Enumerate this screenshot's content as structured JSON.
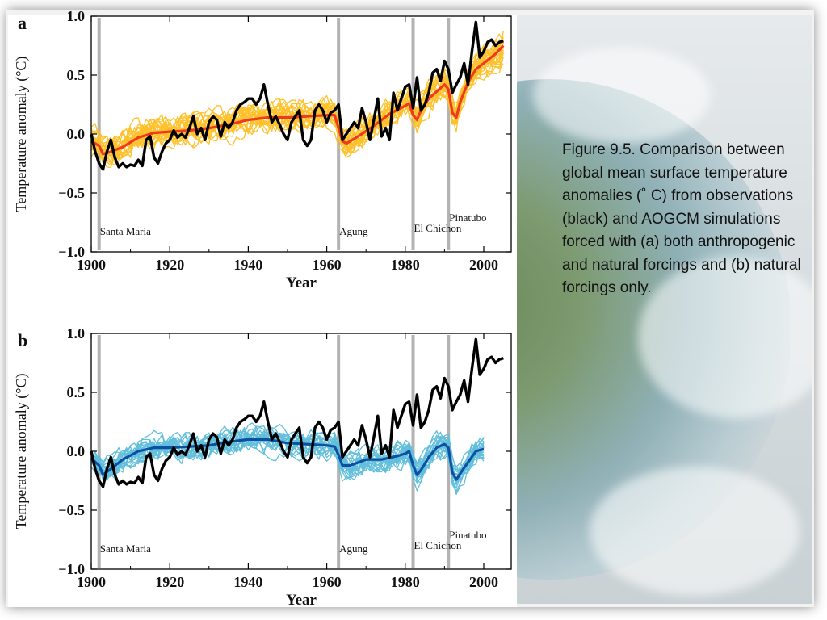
{
  "caption": "Figure 9.5. Comparison between global mean surface temperature anomalies (˚ C) from observations (black) and AOGCM simulations forced with (a) both anthropogenic and natural forcings and (b) natural forcings only.",
  "colors": {
    "observations": "#000000",
    "panel_a_ensemble": "#ffc12b",
    "panel_a_mean": "#ee3a1f",
    "panel_b_ensemble": "#62bfdb",
    "panel_b_mean": "#0d4fa3",
    "eruption_bar": "#b3b3b3"
  },
  "chart_data": [
    {
      "type": "line",
      "panel_label": "a",
      "ylabel": "Temperature anomaly (°C)",
      "xlabel": "Year",
      "xlim": [
        1900,
        2007
      ],
      "ylim": [
        -1.0,
        1.0
      ],
      "xticks": [
        1900,
        1920,
        1940,
        1960,
        1980,
        2000
      ],
      "ytick_labels": [
        "1.0",
        "0.5",
        "0.0",
        "−0.5",
        "−1.0"
      ],
      "ytick_values": [
        1.0,
        0.5,
        0.0,
        -0.5,
        -1.0
      ],
      "eruptions": [
        {
          "name": "Santa Maria",
          "year": 1902
        },
        {
          "name": "Agung",
          "year": 1963
        },
        {
          "name": "El Chichon",
          "year": 1982
        },
        {
          "name": "Pinatubo",
          "year": 1991
        }
      ],
      "series": [
        {
          "role": "ensemble_mean",
          "x": [
            1900,
            1902,
            1903,
            1905,
            1908,
            1912,
            1916,
            1920,
            1925,
            1930,
            1935,
            1940,
            1945,
            1950,
            1955,
            1960,
            1962,
            1963,
            1964,
            1965,
            1968,
            1972,
            1976,
            1980,
            1981,
            1982,
            1983,
            1984,
            1986,
            1988,
            1990,
            1991,
            1992,
            1993,
            1994,
            1996,
            1998,
            2000,
            2003,
            2005
          ],
          "y": [
            -0.06,
            -0.1,
            -0.17,
            -0.15,
            -0.11,
            -0.03,
            0.01,
            0.02,
            0.03,
            0.05,
            0.08,
            0.12,
            0.14,
            0.14,
            0.15,
            0.16,
            0.16,
            0.05,
            -0.06,
            -0.08,
            -0.02,
            0.07,
            0.17,
            0.24,
            0.26,
            0.16,
            0.12,
            0.2,
            0.3,
            0.36,
            0.42,
            0.38,
            0.18,
            0.14,
            0.27,
            0.44,
            0.55,
            0.6,
            0.68,
            0.75
          ]
        },
        {
          "role": "observations",
          "x": [
            1900,
            1901,
            1902,
            1903,
            1904,
            1905,
            1906,
            1907,
            1908,
            1909,
            1910,
            1911,
            1912,
            1913,
            1914,
            1915,
            1916,
            1917,
            1918,
            1919,
            1920,
            1921,
            1922,
            1923,
            1924,
            1925,
            1926,
            1927,
            1928,
            1929,
            1930,
            1931,
            1932,
            1933,
            1934,
            1935,
            1936,
            1937,
            1938,
            1939,
            1940,
            1941,
            1942,
            1943,
            1944,
            1945,
            1946,
            1947,
            1948,
            1949,
            1950,
            1951,
            1952,
            1953,
            1954,
            1955,
            1956,
            1957,
            1958,
            1959,
            1960,
            1961,
            1962,
            1963,
            1964,
            1965,
            1966,
            1967,
            1968,
            1969,
            1970,
            1971,
            1972,
            1973,
            1974,
            1975,
            1976,
            1977,
            1978,
            1979,
            1980,
            1981,
            1982,
            1983,
            1984,
            1985,
            1986,
            1987,
            1988,
            1989,
            1990,
            1991,
            1992,
            1993,
            1994,
            1995,
            1996,
            1997,
            1998,
            1999,
            2000,
            2001,
            2002,
            2003,
            2004,
            2005
          ],
          "y": [
            0.0,
            -0.15,
            -0.25,
            -0.3,
            -0.15,
            -0.05,
            -0.2,
            -0.28,
            -0.25,
            -0.28,
            -0.26,
            -0.27,
            -0.22,
            -0.27,
            -0.05,
            -0.02,
            -0.2,
            -0.25,
            -0.15,
            -0.08,
            -0.05,
            0.03,
            -0.03,
            0.0,
            -0.03,
            0.05,
            0.15,
            0.0,
            0.05,
            -0.05,
            0.1,
            0.15,
            0.12,
            -0.02,
            0.1,
            0.05,
            0.1,
            0.2,
            0.25,
            0.27,
            0.3,
            0.3,
            0.25,
            0.3,
            0.42,
            0.25,
            0.1,
            0.15,
            0.08,
            0.0,
            -0.05,
            0.1,
            0.15,
            0.2,
            -0.05,
            -0.1,
            -0.05,
            0.2,
            0.25,
            0.2,
            0.1,
            0.18,
            0.2,
            0.25,
            -0.05,
            0.0,
            0.05,
            0.1,
            0.05,
            0.22,
            0.1,
            -0.05,
            0.12,
            0.3,
            -0.02,
            0.05,
            -0.05,
            0.35,
            0.2,
            0.3,
            0.4,
            0.42,
            0.22,
            0.48,
            0.2,
            0.25,
            0.35,
            0.52,
            0.55,
            0.45,
            0.62,
            0.55,
            0.35,
            0.42,
            0.48,
            0.6,
            0.42,
            0.7,
            0.95,
            0.65,
            0.7,
            0.78,
            0.8,
            0.75,
            0.78,
            0.79
          ]
        }
      ]
    },
    {
      "type": "line",
      "panel_label": "b",
      "ylabel": "Temperature anomaly (°C)",
      "xlabel": "Year",
      "xlim": [
        1900,
        2007
      ],
      "ylim": [
        -1.0,
        1.0
      ],
      "xticks": [
        1900,
        1920,
        1940,
        1960,
        1980,
        2000
      ],
      "ytick_labels": [
        "1.0",
        "0.5",
        "0.0",
        "−0.5",
        "−1.0"
      ],
      "ytick_values": [
        1.0,
        0.5,
        0.0,
        -0.5,
        -1.0
      ],
      "eruptions": [
        {
          "name": "Santa Maria",
          "year": 1902
        },
        {
          "name": "Agung",
          "year": 1963
        },
        {
          "name": "El Chichon",
          "year": 1982
        },
        {
          "name": "Pinatubo",
          "year": 1991
        }
      ],
      "series": [
        {
          "role": "ensemble_mean",
          "x": [
            1900,
            1902,
            1903,
            1905,
            1908,
            1912,
            1916,
            1920,
            1925,
            1930,
            1935,
            1940,
            1945,
            1950,
            1955,
            1960,
            1962,
            1963,
            1964,
            1966,
            1970,
            1974,
            1978,
            1980,
            1981,
            1982,
            1983,
            1984,
            1986,
            1988,
            1990,
            1991,
            1992,
            1993,
            1995,
            1998,
            2000
          ],
          "y": [
            -0.06,
            -0.12,
            -0.2,
            -0.15,
            -0.07,
            0.0,
            0.03,
            0.03,
            0.04,
            0.05,
            0.08,
            0.1,
            0.1,
            0.07,
            0.06,
            0.05,
            0.04,
            -0.03,
            -0.12,
            -0.12,
            -0.07,
            -0.07,
            -0.04,
            -0.02,
            0.0,
            -0.12,
            -0.2,
            -0.16,
            -0.05,
            0.03,
            0.06,
            0.03,
            -0.18,
            -0.24,
            -0.14,
            0.0,
            0.02
          ]
        },
        {
          "role": "observations",
          "x": [
            1900,
            1901,
            1902,
            1903,
            1904,
            1905,
            1906,
            1907,
            1908,
            1909,
            1910,
            1911,
            1912,
            1913,
            1914,
            1915,
            1916,
            1917,
            1918,
            1919,
            1920,
            1921,
            1922,
            1923,
            1924,
            1925,
            1926,
            1927,
            1928,
            1929,
            1930,
            1931,
            1932,
            1933,
            1934,
            1935,
            1936,
            1937,
            1938,
            1939,
            1940,
            1941,
            1942,
            1943,
            1944,
            1945,
            1946,
            1947,
            1948,
            1949,
            1950,
            1951,
            1952,
            1953,
            1954,
            1955,
            1956,
            1957,
            1958,
            1959,
            1960,
            1961,
            1962,
            1963,
            1964,
            1965,
            1966,
            1967,
            1968,
            1969,
            1970,
            1971,
            1972,
            1973,
            1974,
            1975,
            1976,
            1977,
            1978,
            1979,
            1980,
            1981,
            1982,
            1983,
            1984,
            1985,
            1986,
            1987,
            1988,
            1989,
            1990,
            1991,
            1992,
            1993,
            1994,
            1995,
            1996,
            1997,
            1998,
            1999,
            2000,
            2001,
            2002,
            2003,
            2004,
            2005
          ],
          "y": [
            0.0,
            -0.15,
            -0.25,
            -0.3,
            -0.15,
            -0.05,
            -0.2,
            -0.28,
            -0.25,
            -0.28,
            -0.26,
            -0.27,
            -0.22,
            -0.27,
            -0.05,
            -0.02,
            -0.2,
            -0.25,
            -0.15,
            -0.08,
            -0.05,
            0.03,
            -0.03,
            0.0,
            -0.03,
            0.05,
            0.15,
            0.0,
            0.05,
            -0.05,
            0.1,
            0.15,
            0.12,
            -0.02,
            0.1,
            0.05,
            0.1,
            0.2,
            0.25,
            0.27,
            0.3,
            0.3,
            0.25,
            0.3,
            0.42,
            0.25,
            0.1,
            0.15,
            0.08,
            0.0,
            -0.05,
            0.1,
            0.15,
            0.2,
            -0.05,
            -0.1,
            -0.05,
            0.2,
            0.25,
            0.2,
            0.1,
            0.18,
            0.2,
            0.25,
            -0.05,
            0.0,
            0.05,
            0.1,
            0.05,
            0.22,
            0.1,
            -0.05,
            0.12,
            0.3,
            -0.02,
            0.05,
            -0.05,
            0.35,
            0.2,
            0.3,
            0.4,
            0.42,
            0.22,
            0.48,
            0.2,
            0.25,
            0.35,
            0.52,
            0.55,
            0.45,
            0.62,
            0.55,
            0.35,
            0.42,
            0.48,
            0.6,
            0.42,
            0.7,
            0.95,
            0.65,
            0.7,
            0.78,
            0.8,
            0.75,
            0.78,
            0.79
          ]
        }
      ]
    }
  ]
}
